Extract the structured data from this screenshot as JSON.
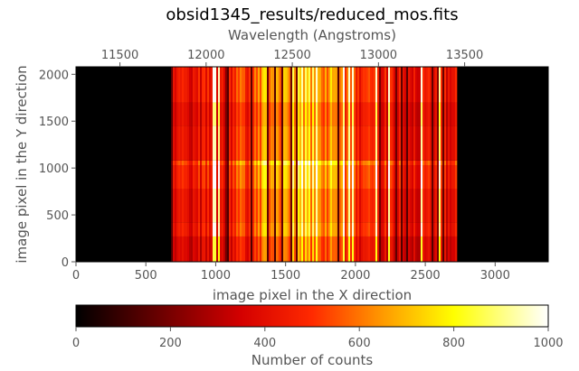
{
  "chart_data": {
    "type": "heatmap",
    "title": "obsid1345_results/reduced_mos.fits",
    "xlabel": "image pixel in the X direction",
    "ylabel": "image pixel in the Y direction",
    "x2label": "Wavelength (Angstroms)",
    "xlim": [
      0,
      3380
    ],
    "ylim": [
      0,
      2080
    ],
    "x2lim": [
      11245,
      13985
    ],
    "xticks": [
      0,
      500,
      1000,
      1500,
      2000,
      2500,
      3000
    ],
    "yticks": [
      0,
      500,
      1000,
      1500,
      2000
    ],
    "x2ticks": [
      11500,
      12000,
      12500,
      13000,
      13500
    ],
    "data_extent_x": [
      680,
      2720
    ],
    "colormap": "hot",
    "colors": [
      "#000000",
      "#8b0000",
      "#ff0000",
      "#ff7f00",
      "#ffff00",
      "#ffffff"
    ],
    "colorbar": {
      "label": "Number of counts",
      "range": [
        0,
        1000
      ],
      "ticks": [
        0,
        200,
        400,
        600,
        800,
        1000
      ]
    },
    "grid": false
  }
}
